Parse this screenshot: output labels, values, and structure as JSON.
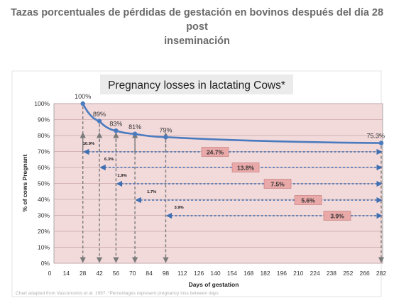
{
  "page": {
    "heading_line1": "Tazas porcentuales de pérdidas de gestación en bovinos después del día 28 post",
    "heading_line2": "inseminación",
    "source_note": "Chart adapted from Vasconcelos et al. 1997. *Percentages represent pregnancy loss between days"
  },
  "chart_data": {
    "type": "line",
    "title": "Pregnancy losses in lactating Cows*",
    "xlabel": "Days of gestation",
    "ylabel": "% of cows Pregnant",
    "xlim": [
      0,
      282
    ],
    "ylim": [
      0,
      100
    ],
    "xticks": [
      "0",
      "14",
      "28",
      "42",
      "56",
      "70",
      "84",
      "98",
      "112",
      "126",
      "140",
      "154",
      "168",
      "182",
      "196",
      "210",
      "224",
      "238",
      "252",
      "266",
      "282"
    ],
    "yticks": [
      "0%",
      "10%",
      "20%",
      "30%",
      "40%",
      "50%",
      "60%",
      "70%",
      "80%",
      "90%",
      "100%"
    ],
    "grid": true,
    "series": [
      {
        "x": [
          28,
          42,
          56,
          72,
          98,
          282
        ],
        "y": [
          100,
          89,
          83,
          81,
          79,
          75.3
        ],
        "labels": [
          "100%",
          "89%",
          "83%",
          "81%",
          "79%",
          "75.3%"
        ]
      }
    ],
    "loss_intervals": [
      {
        "from": 28,
        "to": 42,
        "loss": "10.9%"
      },
      {
        "from": 42,
        "to": 56,
        "loss": "6.3%"
      },
      {
        "from": 56,
        "to": 72,
        "loss": "1.9%"
      },
      {
        "from": 72,
        "to": 98,
        "loss": "1.7%"
      },
      {
        "from": 98,
        "to": 282,
        "loss": "3.9%"
      }
    ],
    "cumulative_losses": [
      {
        "from": 28,
        "to": 282,
        "loss": "24.7%"
      },
      {
        "from": 42,
        "to": 282,
        "loss": "13.8%"
      },
      {
        "from": 56,
        "to": 282,
        "loss": "7.5%"
      },
      {
        "from": 72,
        "to": 282,
        "loss": "5.6%"
      },
      {
        "from": 98,
        "to": 282,
        "loss": "3.9%"
      }
    ],
    "colors": {
      "plot_background": "#f2d9da",
      "grid": "#c9a9ab",
      "line": "#4a7bbf",
      "dashed": "#7a7a7a",
      "arrow_blue": "#3e6fb2",
      "box_fill": "#eaa9a9",
      "box_border": "#c07878",
      "text": "#333333"
    }
  }
}
